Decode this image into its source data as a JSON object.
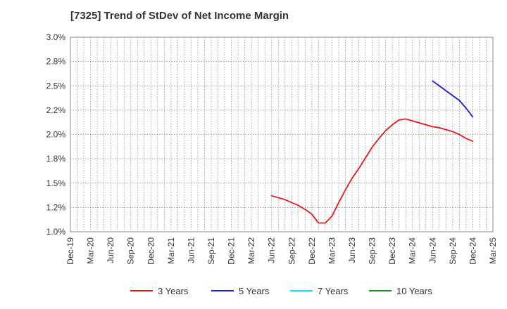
{
  "chart_data": {
    "type": "line",
    "title": "[7325]  Trend of StDev of Net Income Margin",
    "xlabel": "",
    "ylabel": "",
    "x": [
      "Dec-19",
      "Mar-20",
      "Jun-20",
      "Sep-20",
      "Dec-20",
      "Mar-21",
      "Jun-21",
      "Sep-21",
      "Dec-21",
      "Mar-22",
      "Jun-22",
      "Sep-22",
      "Dec-22",
      "Mar-23",
      "Jun-23",
      "Sep-23",
      "Dec-23",
      "Mar-24",
      "Jun-24",
      "Sep-24",
      "Dec-24",
      "Mar-25"
    ],
    "y_ticks": [
      1.0,
      1.25,
      1.5,
      1.75,
      2.0,
      2.25,
      2.5,
      2.75,
      3.0
    ],
    "y_tick_labels": [
      "1.0%",
      "1.2%",
      "1.5%",
      "1.8%",
      "2.0%",
      "2.2%",
      "2.5%",
      "2.8%",
      "3.0%"
    ],
    "ylim": [
      1.0,
      3.0
    ],
    "grid": true,
    "legend_position": "bottom",
    "series": [
      {
        "name": "3 Years",
        "color": "#e31a1c",
        "points": [
          [
            "Jun-22",
            1.37
          ],
          [
            "Jul-22",
            1.35
          ],
          [
            "Aug-22",
            1.33
          ],
          [
            "Sep-22",
            1.3
          ],
          [
            "Oct-22",
            1.27
          ],
          [
            "Nov-22",
            1.23
          ],
          [
            "Dec-22",
            1.18
          ],
          [
            "Jan-23",
            1.09
          ],
          [
            "Feb-23",
            1.09
          ],
          [
            "Mar-23",
            1.16
          ],
          [
            "Apr-23",
            1.3
          ],
          [
            "May-23",
            1.43
          ],
          [
            "Jun-23",
            1.55
          ],
          [
            "Jul-23",
            1.65
          ],
          [
            "Aug-23",
            1.76
          ],
          [
            "Sep-23",
            1.87
          ],
          [
            "Oct-23",
            1.96
          ],
          [
            "Nov-23",
            2.04
          ],
          [
            "Dec-23",
            2.1
          ],
          [
            "Jan-24",
            2.15
          ],
          [
            "Feb-24",
            2.16
          ],
          [
            "Mar-24",
            2.14
          ],
          [
            "Apr-24",
            2.12
          ],
          [
            "May-24",
            2.1
          ],
          [
            "Jun-24",
            2.08
          ],
          [
            "Jul-24",
            2.07
          ],
          [
            "Aug-24",
            2.05
          ],
          [
            "Sep-24",
            2.03
          ],
          [
            "Oct-24",
            2.0
          ],
          [
            "Nov-24",
            1.96
          ],
          [
            "Dec-24",
            1.93
          ]
        ]
      },
      {
        "name": "5 Years",
        "color": "#1a1adc",
        "points": [
          [
            "Jun-24",
            2.55
          ],
          [
            "Jul-24",
            2.5
          ],
          [
            "Aug-24",
            2.45
          ],
          [
            "Sep-24",
            2.4
          ],
          [
            "Oct-24",
            2.35
          ],
          [
            "Nov-24",
            2.27
          ],
          [
            "Dec-24",
            2.18
          ]
        ]
      },
      {
        "name": "7 Years",
        "color": "#00e5ee",
        "points": []
      },
      {
        "name": "10 Years",
        "color": "#228b22",
        "points": []
      }
    ]
  }
}
